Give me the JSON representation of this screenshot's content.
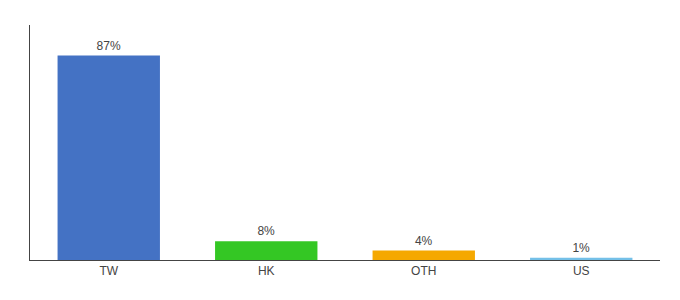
{
  "chart_data": {
    "type": "bar",
    "categories": [
      "TW",
      "HK",
      "OTH",
      "US"
    ],
    "values": [
      87,
      8,
      4,
      1
    ],
    "value_labels": [
      "87%",
      "8%",
      "4%",
      "1%"
    ],
    "colors": [
      "#4472c4",
      "#34c724",
      "#f5a800",
      "#74c0e8"
    ],
    "ylim": [
      0,
      100
    ],
    "grid": false,
    "data_labels": true,
    "tick_labels": "x"
  }
}
